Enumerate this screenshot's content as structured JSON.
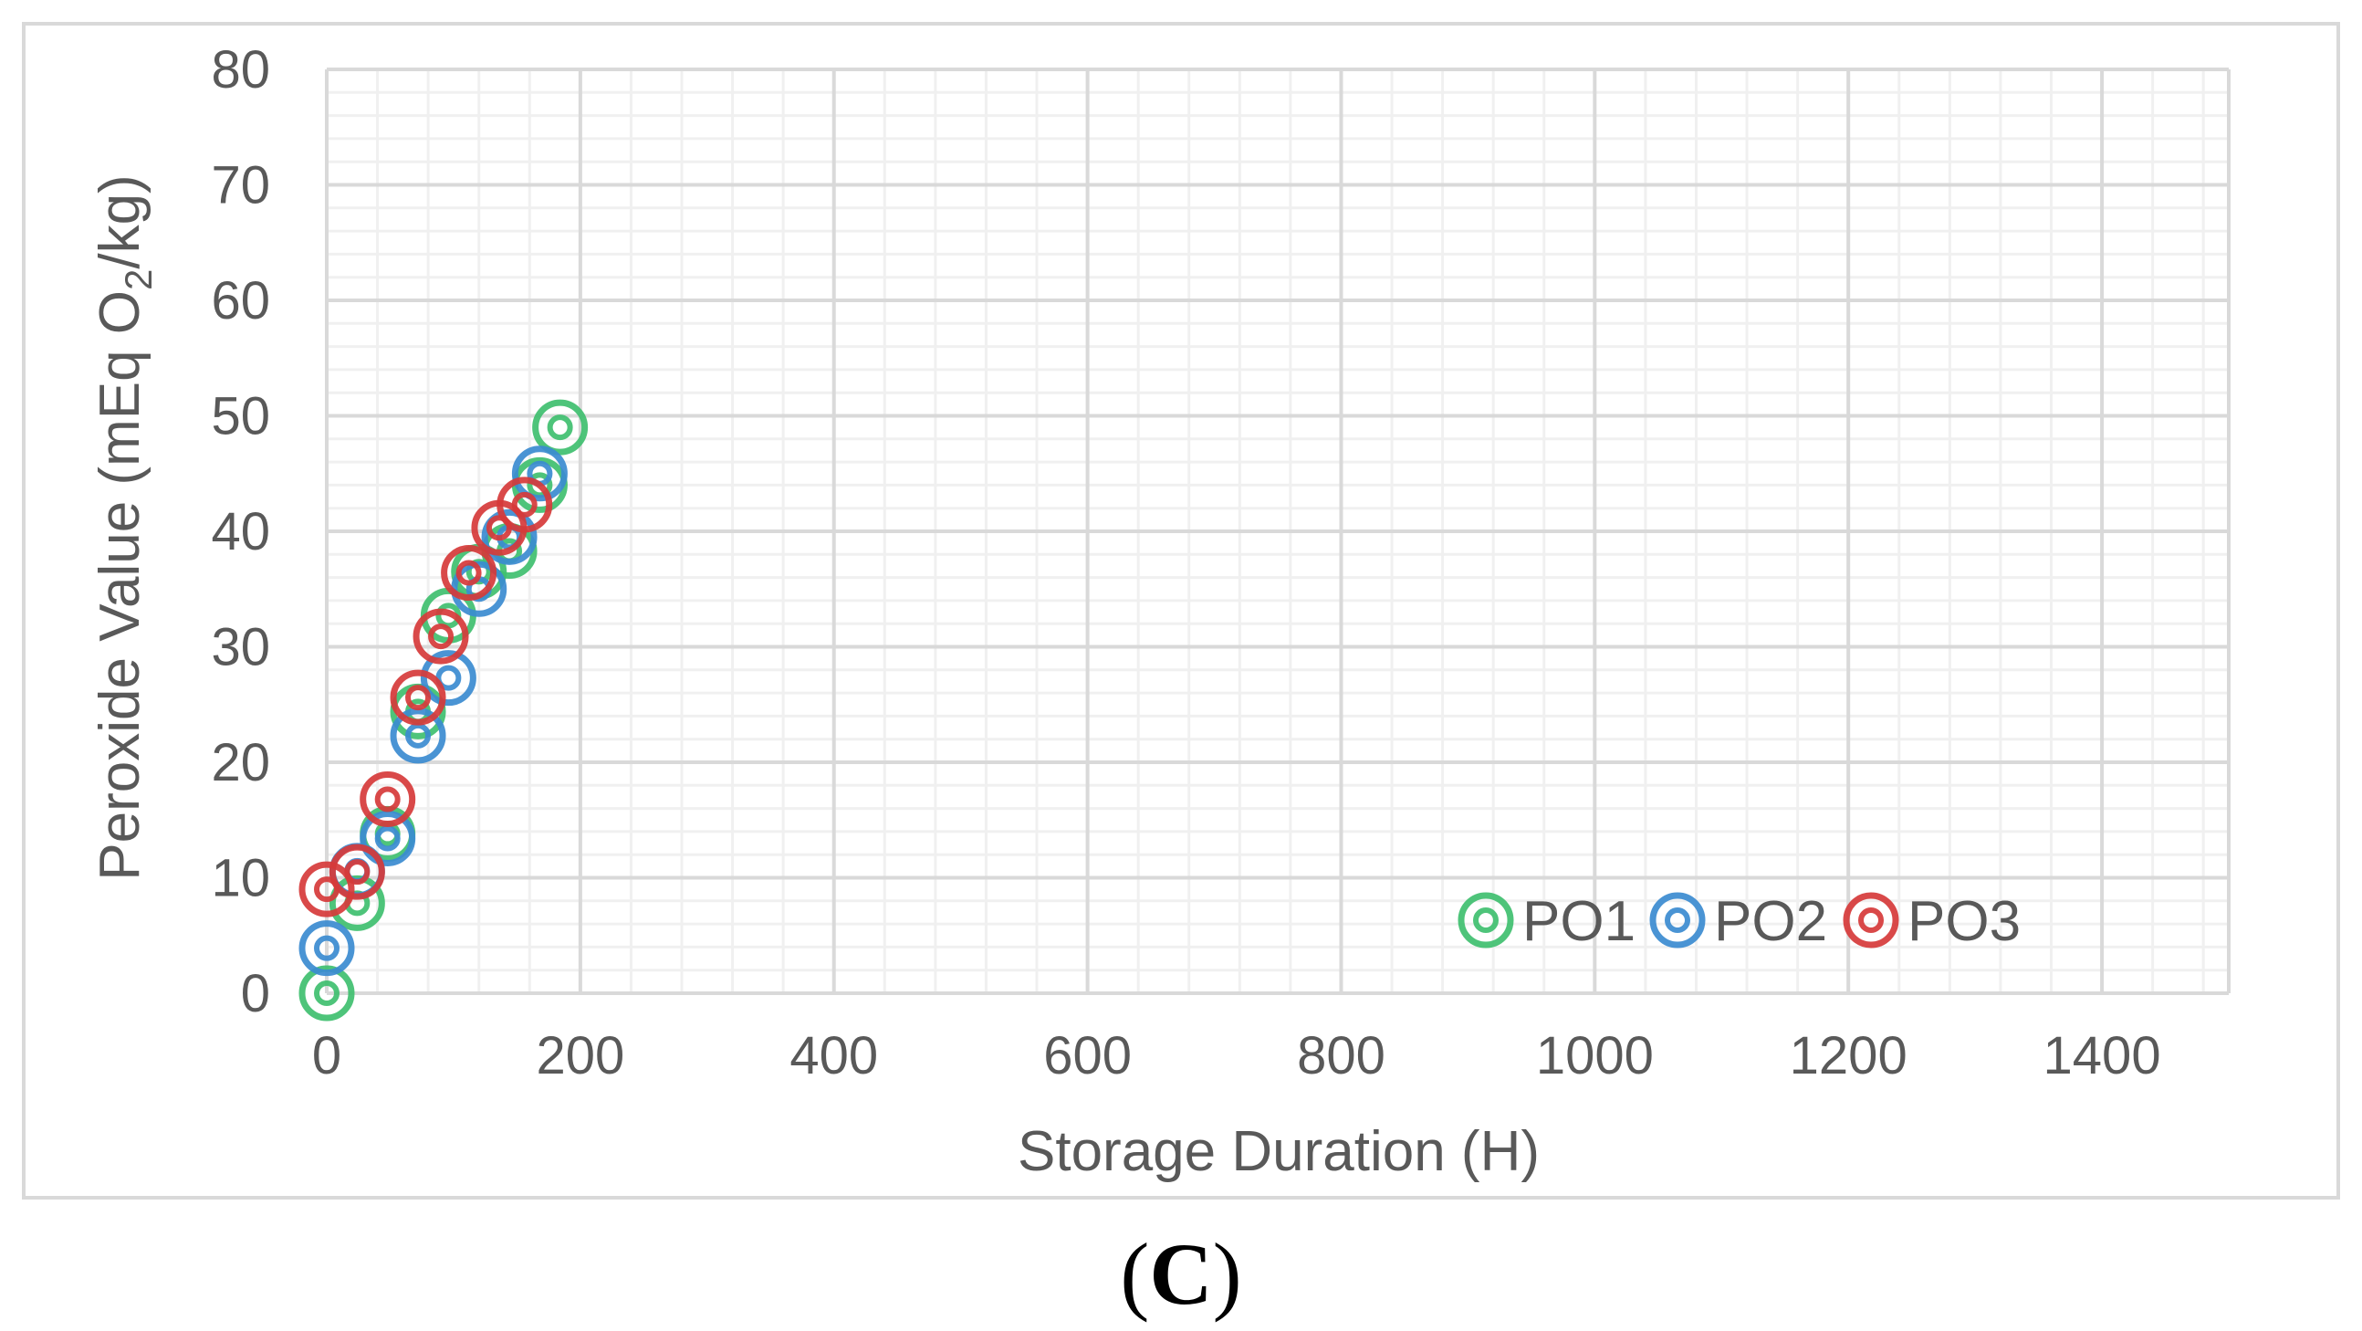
{
  "panel_label": {
    "open": "(",
    "letter": "C",
    "close": ")"
  },
  "colors": {
    "PO1": "#3fbf6f",
    "PO2": "#3b8bd0",
    "PO3": "#d63a3a",
    "grid_major": "#d9d9d9",
    "grid_minor": "#f0f0f0",
    "text": "#595959"
  },
  "chart_data": {
    "type": "scatter",
    "title": "",
    "xlabel": "Storage Duration (H)",
    "ylabel": {
      "prefix": "Peroxide Value (mEq O",
      "sub": "2",
      "suffix": "/kg)"
    },
    "xlim": [
      0,
      1500
    ],
    "ylim": [
      0,
      80
    ],
    "x_ticks": [
      0,
      200,
      400,
      600,
      800,
      1000,
      1200,
      1400
    ],
    "y_ticks": [
      0,
      10,
      20,
      30,
      40,
      50,
      60,
      70,
      80
    ],
    "grid": true,
    "legend_position": "bottom-right",
    "series": [
      {
        "name": "PO1",
        "x": [
          0,
          24,
          48,
          72,
          96,
          120,
          144,
          168,
          184
        ],
        "y": [
          0,
          7.8,
          13.8,
          24.4,
          32.7,
          36.5,
          38.3,
          44.0,
          49.0
        ]
      },
      {
        "name": "PO2",
        "x": [
          0,
          24,
          48,
          72,
          96,
          120,
          144,
          168
        ],
        "y": [
          3.9,
          10.6,
          13.4,
          22.3,
          27.3,
          35.0,
          39.5,
          45.0
        ]
      },
      {
        "name": "PO3",
        "x": [
          0,
          24,
          48,
          72,
          90,
          112,
          136,
          156
        ],
        "y": [
          9.0,
          10.5,
          16.8,
          25.6,
          30.9,
          36.4,
          40.3,
          42.3
        ]
      }
    ]
  }
}
